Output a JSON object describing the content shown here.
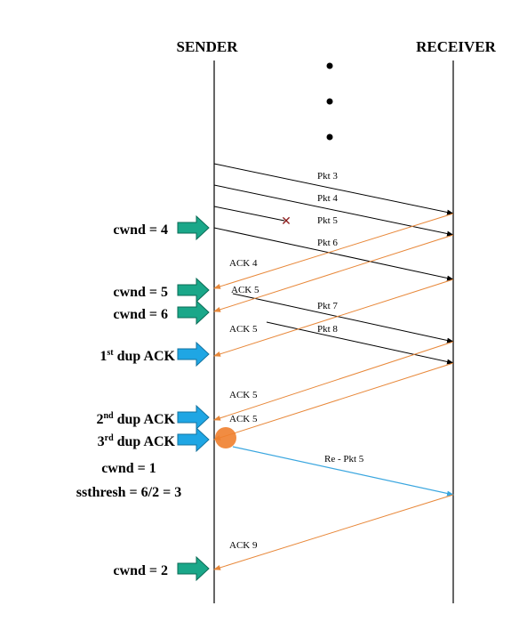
{
  "headers": {
    "sender": "SENDER",
    "receiver": "RECEIVER"
  },
  "colors": {
    "data_arrow": "#000000",
    "ack_arrow": "#e8883a",
    "retransmit_arrow": "#3aa6df",
    "cwnd_indicator": "#1aa789",
    "dup_ack_indicator": "#1fa6e4",
    "loss_mark": "#8b1a1a",
    "fast_retransmit_dot": "#f07f2e"
  },
  "packets": [
    {
      "label": "Pkt 3"
    },
    {
      "label": "Pkt 4"
    },
    {
      "label": "Pkt 5",
      "lost": true
    },
    {
      "label": "Pkt 6"
    },
    {
      "label": "Pkt 7"
    },
    {
      "label": "Pkt 8"
    },
    {
      "label": "Re -  Pkt 5",
      "retransmission": true
    }
  ],
  "acks": [
    {
      "label": "ACK 4"
    },
    {
      "label": "ACK 5"
    },
    {
      "label": "ACK 5"
    },
    {
      "label": "ACK 5"
    },
    {
      "label": "ACK 5"
    },
    {
      "label": "ACK 9"
    }
  ],
  "sender_events": [
    {
      "text": "cwnd = 4",
      "indicator": "cwnd"
    },
    {
      "text": "cwnd = 5",
      "indicator": "cwnd"
    },
    {
      "text": "cwnd = 6",
      "indicator": "cwnd"
    },
    {
      "text_main": "1",
      "text_sup": "st",
      "text_rest": " dup ACK",
      "indicator": "dup"
    },
    {
      "text_main": "2",
      "text_sup": "nd",
      "text_rest": " dup ACK",
      "indicator": "dup"
    },
    {
      "text_main": "3",
      "text_sup": "rd",
      "text_rest": " dup ACK",
      "indicator": "dup"
    },
    {
      "text": "cwnd = 1",
      "indicator": "none"
    },
    {
      "text": "ssthresh = 6/2 = 3",
      "indicator": "none"
    },
    {
      "text": "cwnd = 2",
      "indicator": "cwnd"
    }
  ]
}
